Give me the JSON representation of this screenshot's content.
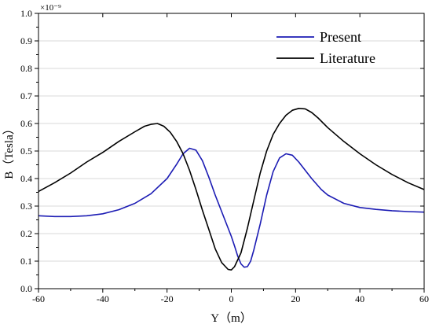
{
  "chart_data": {
    "type": "line",
    "title": "",
    "xlabel": "Y（m）",
    "ylabel": "B（Tesla）",
    "y_multiplier": "×10⁻⁹",
    "xlim": [
      -60,
      60
    ],
    "ylim": [
      0.0,
      1.0
    ],
    "xticks": [
      -60,
      -40,
      -20,
      0,
      20,
      40,
      60
    ],
    "yticks": [
      0.0,
      0.1,
      0.2,
      0.3,
      0.4,
      0.5,
      0.6,
      0.7,
      0.8,
      0.9,
      1.0
    ],
    "grid": true,
    "legend_position": "top-right",
    "series": [
      {
        "name": "Present",
        "color": "#1c1cb4",
        "x": [
          -60,
          -55,
          -50,
          -45,
          -40,
          -35,
          -30,
          -25,
          -20,
          -17,
          -15,
          -13,
          -11,
          -9,
          -7,
          -5,
          -3,
          -1,
          0,
          1,
          2,
          3,
          4,
          5,
          6,
          7,
          9,
          11,
          13,
          15,
          17,
          19,
          21,
          23,
          25,
          28,
          30,
          35,
          40,
          45,
          50,
          55,
          60
        ],
        "y": [
          0.265,
          0.262,
          0.262,
          0.265,
          0.272,
          0.287,
          0.31,
          0.345,
          0.4,
          0.452,
          0.49,
          0.51,
          0.503,
          0.465,
          0.405,
          0.34,
          0.28,
          0.22,
          0.19,
          0.155,
          0.118,
          0.09,
          0.078,
          0.08,
          0.1,
          0.14,
          0.235,
          0.34,
          0.425,
          0.475,
          0.49,
          0.485,
          0.46,
          0.43,
          0.4,
          0.36,
          0.34,
          0.31,
          0.295,
          0.288,
          0.283,
          0.28,
          0.278
        ]
      },
      {
        "name": "Literature",
        "color": "#000000",
        "x": [
          -60,
          -55,
          -50,
          -45,
          -40,
          -35,
          -30,
          -27,
          -25,
          -23,
          -21,
          -19,
          -17,
          -15,
          -13,
          -11,
          -9,
          -7,
          -5,
          -3,
          -1,
          0,
          1,
          3,
          5,
          7,
          9,
          11,
          13,
          15,
          17,
          19,
          21,
          23,
          25,
          27,
          30,
          35,
          40,
          45,
          50,
          55,
          60
        ],
        "y": [
          0.353,
          0.385,
          0.42,
          0.46,
          0.495,
          0.535,
          0.57,
          0.59,
          0.597,
          0.6,
          0.59,
          0.568,
          0.535,
          0.49,
          0.43,
          0.36,
          0.285,
          0.215,
          0.145,
          0.095,
          0.07,
          0.068,
          0.08,
          0.13,
          0.22,
          0.32,
          0.42,
          0.5,
          0.56,
          0.6,
          0.63,
          0.648,
          0.655,
          0.653,
          0.64,
          0.62,
          0.585,
          0.535,
          0.49,
          0.45,
          0.415,
          0.385,
          0.36
        ]
      }
    ]
  }
}
